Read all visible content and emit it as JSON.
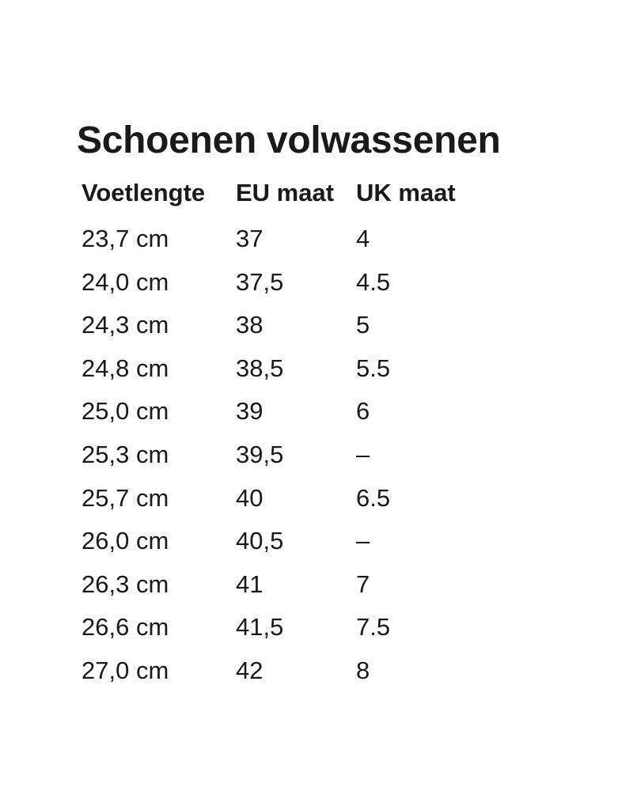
{
  "title": "Schoenen volwassenen",
  "table": {
    "headers": [
      "Voetlengte",
      "EU maat",
      "UK maat"
    ],
    "rows": [
      [
        "23,7 cm",
        "37",
        "4"
      ],
      [
        "24,0 cm",
        "37,5",
        "4.5"
      ],
      [
        "24,3 cm",
        "38",
        "5"
      ],
      [
        "24,8 cm",
        "38,5",
        "5.5"
      ],
      [
        "25,0 cm",
        "39",
        "6"
      ],
      [
        "25,3 cm",
        "39,5",
        "–"
      ],
      [
        "25,7 cm",
        "40",
        "6.5"
      ],
      [
        "26,0 cm",
        "40,5",
        "–"
      ],
      [
        "26,3 cm",
        "41",
        "7"
      ],
      [
        "26,6 cm",
        "41,5",
        "7.5"
      ],
      [
        "27,0 cm",
        "42",
        "8"
      ]
    ]
  }
}
